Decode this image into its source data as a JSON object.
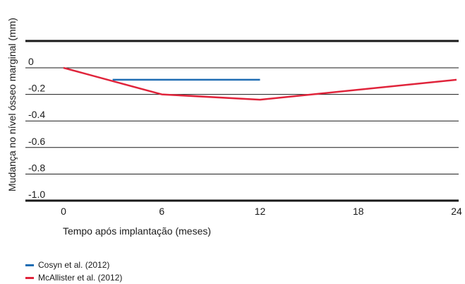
{
  "chart_data": {
    "type": "line",
    "xlabel": "Tempo após implantação (meses)",
    "ylabel": "Mudança no nível ósseo marginal (mm)",
    "xlim": [
      0,
      24
    ],
    "ylim": [
      -1.0,
      0
    ],
    "x_ticks": [
      "0",
      "6",
      "12",
      "18",
      "24"
    ],
    "y_ticks": [
      "0",
      "-0.2",
      "-0.4",
      "-0.6",
      "-0.8",
      "-1.0"
    ],
    "grid": true,
    "legend_position": "bottom-left",
    "series": [
      {
        "name": "Cosyn et al. (2012)",
        "color": "#1f6db3",
        "x": [
          0,
          3,
          12
        ],
        "y": [
          0,
          -0.09,
          -0.09
        ],
        "connect_from_start": false
      },
      {
        "name": "McAllister et al. (2012)",
        "color": "#e0243b",
        "x": [
          0,
          6,
          12,
          24
        ],
        "y": [
          0,
          -0.2,
          -0.24,
          -0.09
        ]
      }
    ]
  }
}
